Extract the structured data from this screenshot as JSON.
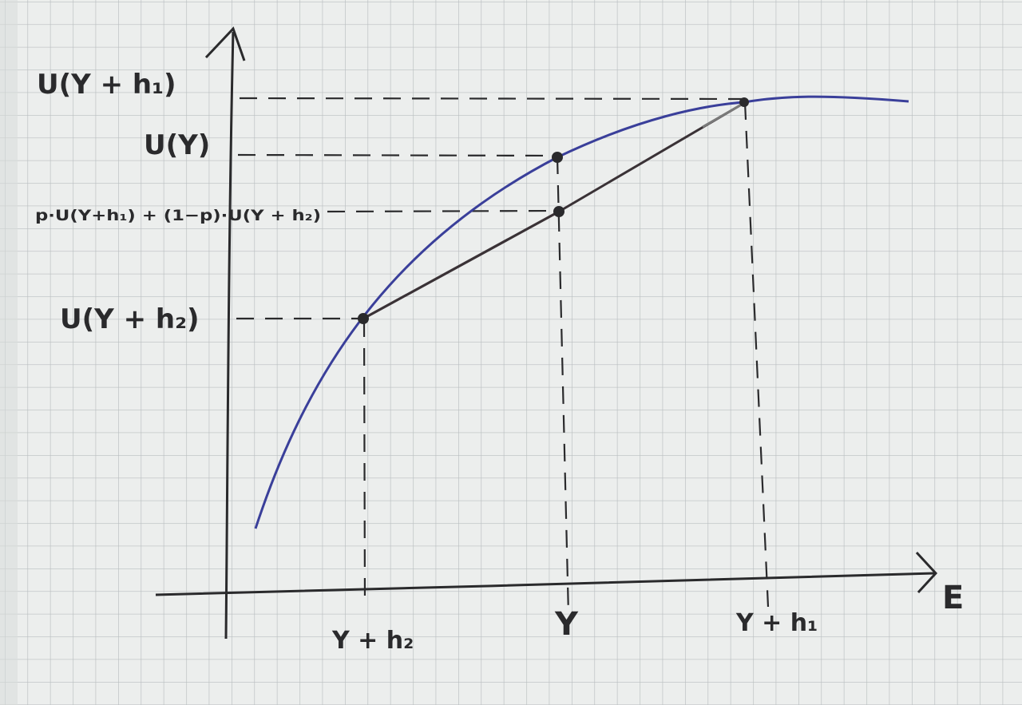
{
  "diagram": {
    "y_labels": {
      "u_y_plus_h1": "U(Y + h₁)",
      "u_y": "U(Y)",
      "expected_utility": "p·U(Y+h₁) + (1−p)·U(Y + h₂)",
      "u_y_plus_h2": "U(Y + h₂)"
    },
    "x_labels": {
      "y_plus_h2": "Y + h₂",
      "y": "Y",
      "y_plus_h1": "Y + h₁"
    },
    "x_axis_label": "E",
    "colors": {
      "paper": "#eceeed",
      "grid": "#b9bec0",
      "ink": "#2a2a2c",
      "curve": "#3a3f9a",
      "chord": "#3a3236",
      "chord_end": "#7a7a7a"
    }
  }
}
